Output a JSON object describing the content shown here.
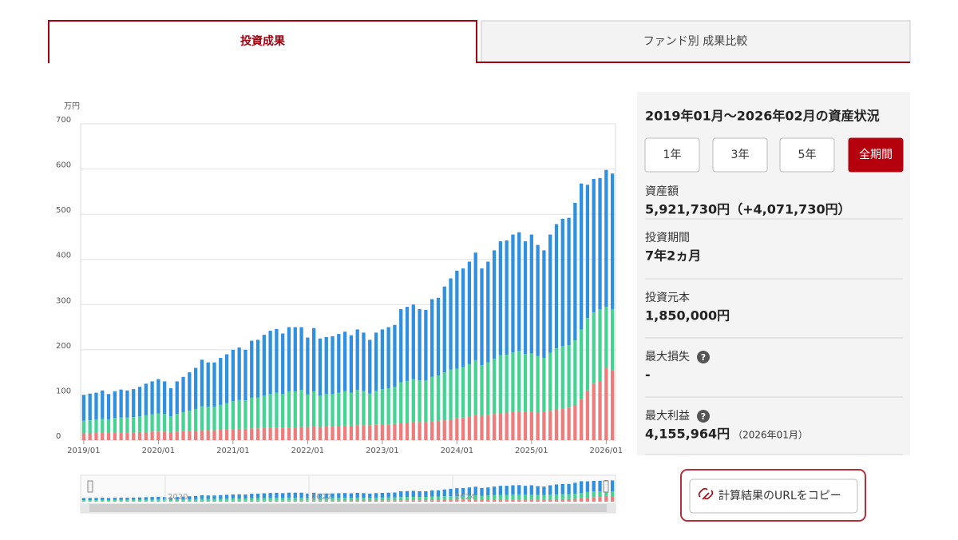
{
  "tabs": [
    "投資成果",
    "ファンド別 成果比較"
  ],
  "chart_data": {
    "type": "bar",
    "stacked": true,
    "y_unit": "万円",
    "ylim": [
      0,
      700
    ],
    "yticks": [
      0,
      100,
      200,
      300,
      400,
      500,
      600,
      700
    ],
    "grid": true,
    "categories": [
      "2019/01",
      null,
      null,
      null,
      null,
      null,
      null,
      null,
      null,
      null,
      null,
      null,
      "2020/01",
      null,
      null,
      null,
      null,
      null,
      null,
      null,
      null,
      null,
      null,
      null,
      "2021/01",
      null,
      null,
      null,
      null,
      null,
      null,
      null,
      null,
      null,
      null,
      null,
      "2022/01",
      null,
      null,
      null,
      null,
      null,
      null,
      null,
      null,
      null,
      null,
      null,
      "2023/01",
      null,
      null,
      null,
      null,
      null,
      null,
      null,
      null,
      null,
      null,
      null,
      "2024/01",
      null,
      null,
      null,
      null,
      null,
      null,
      null,
      null,
      null,
      null,
      null,
      "2025/01",
      null,
      null,
      null,
      null,
      null,
      null,
      null,
      null,
      null,
      null,
      null,
      "2026/01",
      null
    ],
    "series": [
      {
        "color": "#f07b7b",
        "values": [
          15,
          15,
          16,
          16,
          16,
          17,
          17,
          17,
          17,
          18,
          18,
          19,
          19,
          19,
          18,
          19,
          20,
          20,
          21,
          22,
          22,
          22,
          23,
          24,
          24,
          25,
          25,
          26,
          26,
          27,
          27,
          27,
          27,
          28,
          28,
          29,
          29,
          30,
          29,
          30,
          30,
          31,
          32,
          32,
          33,
          33,
          33,
          34,
          35,
          35,
          36,
          38,
          39,
          40,
          40,
          40,
          42,
          43,
          44,
          46,
          48,
          50,
          52,
          55,
          54,
          56,
          58,
          60,
          61,
          62,
          64,
          63,
          62,
          61,
          62,
          65,
          68,
          70,
          72,
          76,
          90,
          110,
          125,
          130,
          160,
          155
        ]
      },
      {
        "color": "#45d394",
        "values": [
          28,
          29,
          30,
          31,
          30,
          32,
          33,
          33,
          34,
          35,
          37,
          38,
          40,
          39,
          35,
          39,
          42,
          45,
          48,
          53,
          52,
          52,
          55,
          58,
          62,
          64,
          63,
          68,
          68,
          72,
          75,
          78,
          75,
          80,
          80,
          82,
          72,
          78,
          70,
          72,
          72,
          74,
          76,
          73,
          78,
          76,
          70,
          75,
          78,
          80,
          82,
          90,
          92,
          95,
          92,
          92,
          98,
          100,
          106,
          110,
          110,
          112,
          116,
          122,
          112,
          116,
          122,
          128,
          128,
          132,
          134,
          128,
          130,
          125,
          120,
          128,
          135,
          138,
          138,
          145,
          155,
          160,
          158,
          160,
          135,
          135
        ]
      },
      {
        "color": "#2f8fe0",
        "values": [
          57,
          59,
          59,
          63,
          56,
          59,
          62,
          60,
          62,
          65,
          70,
          73,
          76,
          72,
          62,
          72,
          78,
          85,
          91,
          103,
          98,
          98,
          104,
          108,
          114,
          116,
          112,
          126,
          128,
          134,
          140,
          141,
          134,
          142,
          142,
          139,
          126,
          140,
          126,
          126,
          128,
          130,
          132,
          127,
          134,
          129,
          119,
          129,
          132,
          135,
          137,
          162,
          164,
          165,
          158,
          156,
          172,
          172,
          190,
          202,
          217,
          218,
          227,
          238,
          214,
          223,
          240,
          252,
          253,
          261,
          262,
          249,
          263,
          246,
          238,
          262,
          275,
          282,
          282,
          304,
          323,
          295,
          295,
          290,
          303,
          300
        ]
      }
    ],
    "navigator_labels": [
      "2020",
      "2022",
      "2024"
    ]
  },
  "panel": {
    "title": "2019年01月～2026年02月の資産状況",
    "periods": [
      "1年",
      "3年",
      "5年",
      "全期間"
    ],
    "items": [
      {
        "label": "資産額",
        "value": "5,921,730円（+4,071,730円）"
      },
      {
        "label": "投資期間",
        "value": "7年2ヵ月"
      },
      {
        "label": "投資元本",
        "value": "1,850,000円"
      },
      {
        "label": "最大損失",
        "value": "-"
      },
      {
        "label": "最大利益",
        "value": "4,155,964円",
        "note": "（2026年01月）"
      }
    ]
  },
  "copy_button": "計算結果のURLをコピー"
}
